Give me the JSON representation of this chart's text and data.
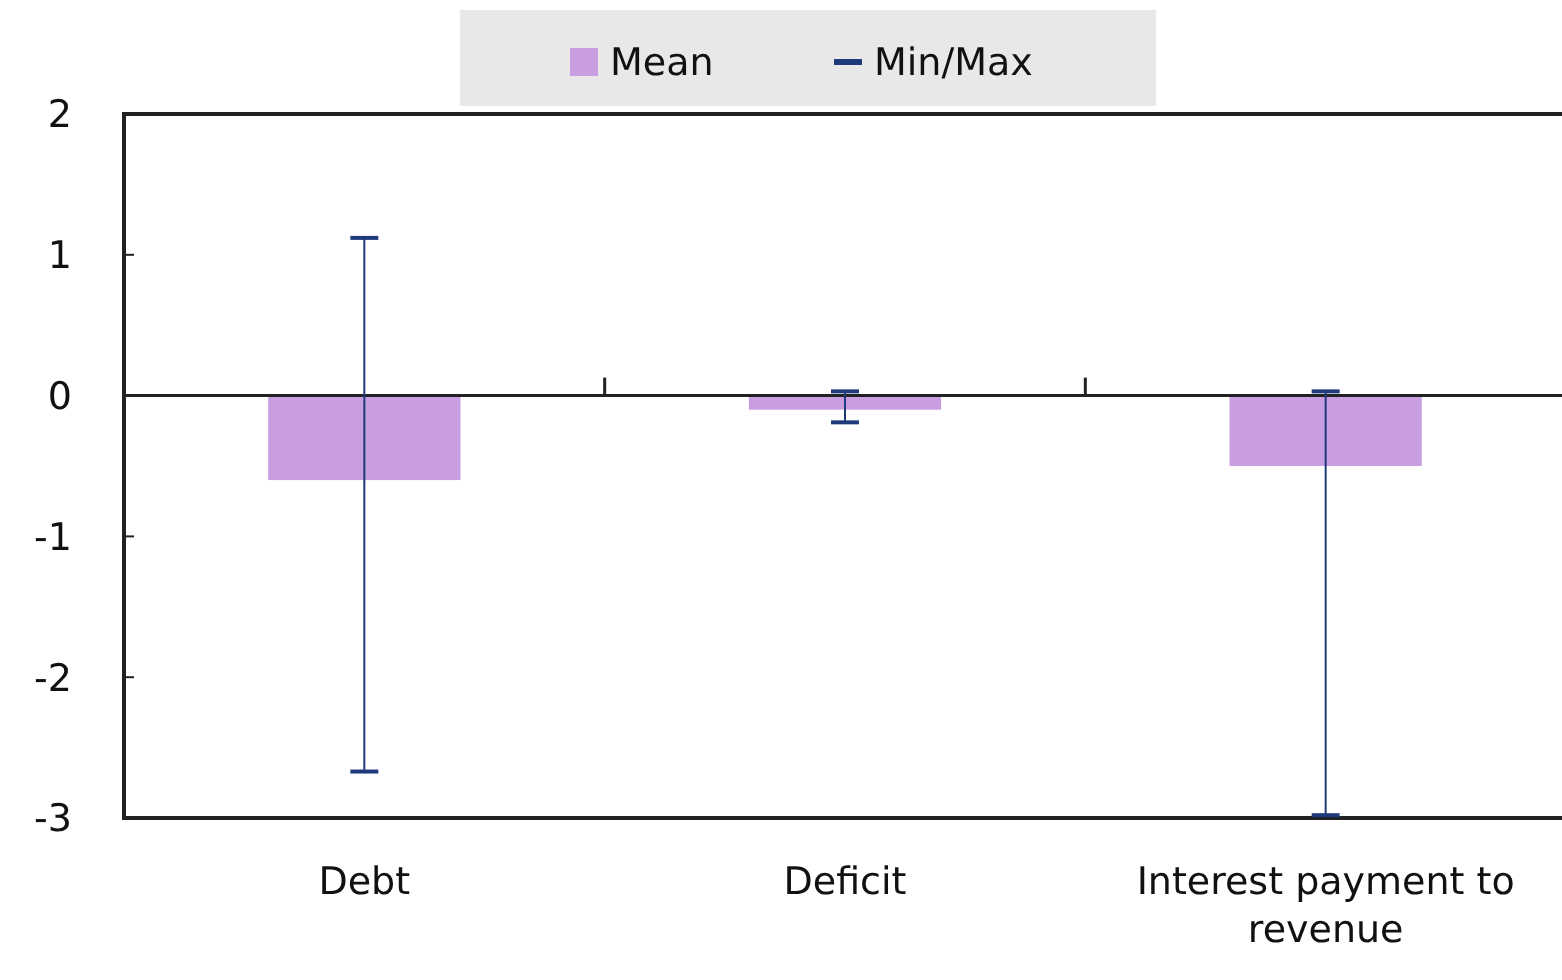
{
  "chart_data": {
    "type": "bar",
    "categories": [
      "Debt",
      "Deficit",
      "Interest payment to revenue"
    ],
    "series": [
      {
        "name": "Mean",
        "color": "#c89ee0",
        "values": [
          -0.6,
          -0.1,
          -0.5
        ],
        "errors": [
          [
            -2.67,
            1.12
          ],
          [
            -0.19,
            0.03
          ],
          [
            -2.98,
            0.03
          ]
        ]
      }
    ],
    "annotations": [
      "Min/Max"
    ],
    "ylim": [
      -3,
      2
    ],
    "yticks": [
      -3,
      -2,
      -1,
      0,
      1,
      2
    ],
    "grid": false,
    "legend": "top"
  }
}
